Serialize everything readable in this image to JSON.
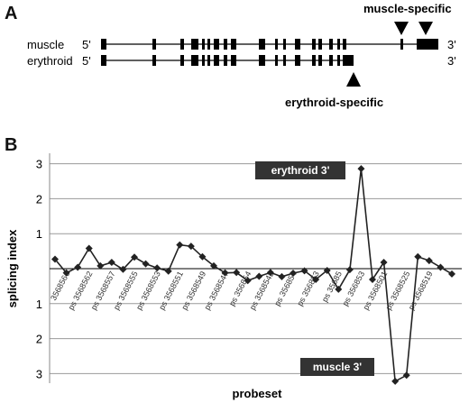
{
  "panel_a": {
    "letter": "A",
    "tracks": [
      {
        "name": "muscle",
        "five_prime": "5'",
        "three_prime": "3'"
      },
      {
        "name": "erythroid",
        "five_prime": "5'",
        "three_prime": "3'"
      }
    ],
    "annotations": {
      "muscle_specific": "muscle-specific",
      "erythroid_specific": "erythroid-specific"
    }
  },
  "panel_b": {
    "letter": "B",
    "callouts": {
      "erythroid": "erythroid 3'",
      "muscle": "muscle 3'"
    }
  },
  "chart_data": {
    "type": "line",
    "xlabel": "probeset",
    "ylabel": "splicing index",
    "ytick_labels_top": [
      "3",
      "2",
      "1"
    ],
    "ytick_labels_bottom": [
      "1",
      "2",
      "3"
    ],
    "ylim": [
      -3.3,
      3.3
    ],
    "grid": true,
    "x_tick_labels": [
      "3568566",
      "ps 3568562",
      "ps 3568557",
      "ps 3568555",
      "ps 3568553",
      "ps 3568551",
      "ps 3568549",
      "ps 3568547",
      "ps 356854",
      "ps 3568542",
      "ps 356854",
      "ps 356853",
      "ps 35685",
      "ps 356853",
      "ps 3568501",
      "ps 3568525",
      "ps 3568519"
    ],
    "series": [
      {
        "values": [
          0.27,
          -0.12,
          0.04,
          0.58,
          0.08,
          0.18,
          -0.02,
          0.33,
          0.14,
          0.02,
          -0.07,
          0.68,
          0.64,
          0.34,
          0.08,
          -0.12,
          -0.11,
          -0.34,
          -0.22,
          -0.11,
          -0.23,
          -0.13,
          -0.06,
          -0.31,
          -0.05,
          -0.59,
          -0.03,
          2.86,
          -0.31,
          0.18,
          -3.22,
          -3.05,
          0.34,
          0.23,
          0.04,
          -0.15
        ],
        "color": "#222222"
      }
    ]
  }
}
